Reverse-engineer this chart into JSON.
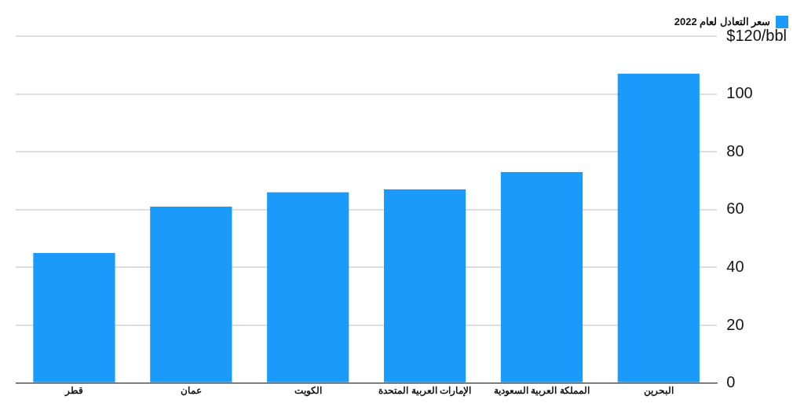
{
  "chart_data": {
    "type": "bar",
    "categories": [
      "قطر",
      "عمان",
      "الكويت",
      "الإمارات العربية المتحدة",
      "المملكة العربية السعودية",
      "البحرين"
    ],
    "series": [
      {
        "name": "سعر التعادل لعام 2022",
        "color": "#1a9bfc",
        "values": [
          45,
          61,
          66,
          67,
          73,
          107
        ]
      }
    ],
    "ylim": [
      0,
      120
    ],
    "yticks": [
      0,
      20,
      40,
      60,
      80,
      100,
      {
        "value": 120,
        "label": "$120/bbl"
      }
    ],
    "grid": "y",
    "legend": "top right"
  }
}
